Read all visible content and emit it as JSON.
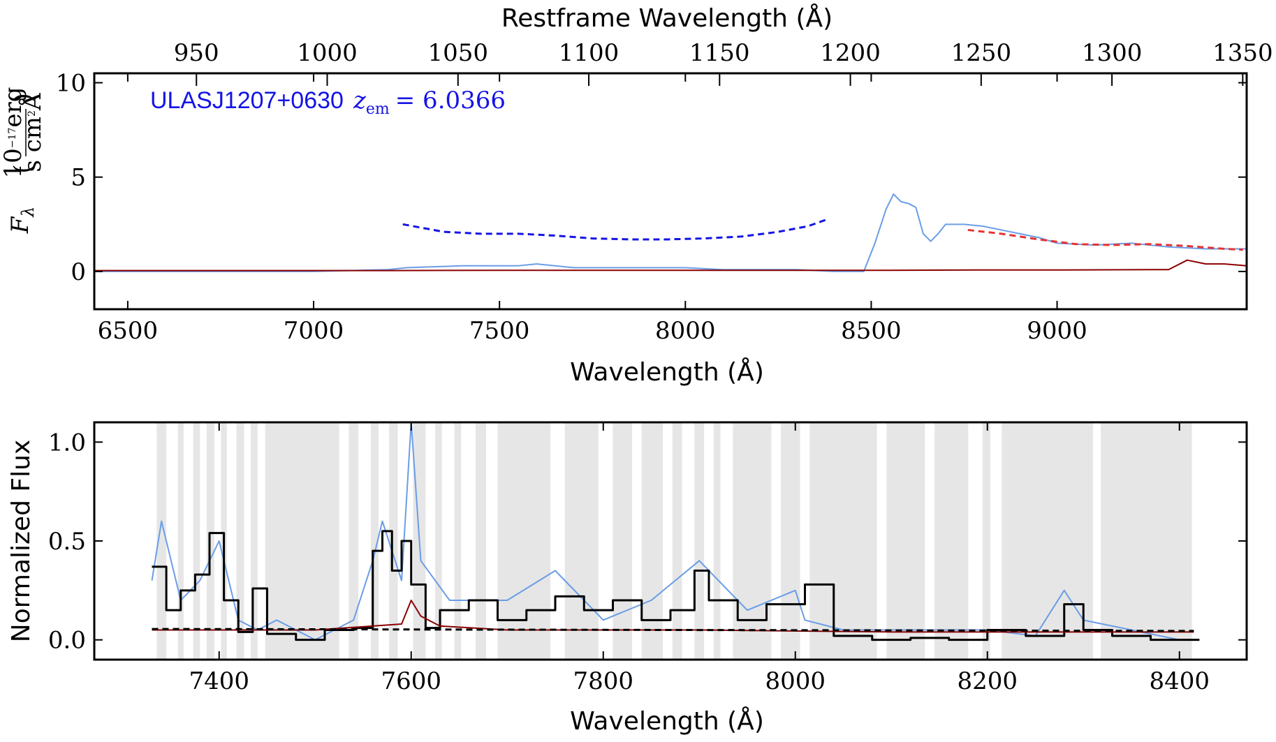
{
  "chart_data": [
    {
      "type": "line",
      "panel": "top",
      "xlabel": "Wavelength (Å)",
      "x2label": "Restframe Wavelength (Å)",
      "ylabel_symbol": "F",
      "ylabel_subscript": "λ",
      "ylabel_unit_num": "10",
      "ylabel_unit_num_exp": "−17",
      "ylabel_unit_num_tail": "erg",
      "ylabel_unit_den": "s cm",
      "ylabel_unit_den_exp": "2",
      "ylabel_unit_den_tail": "Å",
      "annotation": {
        "object": "ULASJ1207+0630",
        "z_symbol": "z",
        "z_sub": "em",
        "z_value": "= 6.0366",
        "color": "#1414e6"
      },
      "xlim": [
        6410,
        9510
      ],
      "ylim": [
        -2,
        10.5
      ],
      "x_ticks": [
        6500,
        7000,
        7500,
        8000,
        8500,
        9000
      ],
      "y_ticks": [
        0,
        5,
        10
      ],
      "x2_ticks": [
        950,
        1000,
        1050,
        1100,
        1150,
        1200,
        1250,
        1300,
        1350
      ],
      "x2_relation": "x2 = x / (1 + 6.0366)",
      "series": [
        {
          "role": "flux",
          "color": "#6a9de6",
          "x": [
            6410,
            6600,
            6800,
            7000,
            7200,
            7250,
            7400,
            7550,
            7600,
            7700,
            7800,
            7900,
            8000,
            8100,
            8200,
            8300,
            8400,
            8480,
            8510,
            8540,
            8560,
            8580,
            8600,
            8620,
            8640,
            8660,
            8680,
            8700,
            8750,
            8800,
            8850,
            8900,
            8950,
            9000,
            9100,
            9200,
            9300,
            9400,
            9450,
            9510
          ],
          "y": [
            0,
            0,
            0,
            0,
            0.1,
            0.2,
            0.3,
            0.3,
            0.4,
            0.2,
            0.2,
            0.2,
            0.2,
            0.1,
            0.1,
            0.1,
            0,
            0,
            1.5,
            3.3,
            4.1,
            3.7,
            3.6,
            3.4,
            2.0,
            1.6,
            2.0,
            2.5,
            2.5,
            2.4,
            2.2,
            2.0,
            1.8,
            1.5,
            1.4,
            1.5,
            1.3,
            1.2,
            1.2,
            1.2
          ]
        },
        {
          "role": "noise",
          "color": "#8b0000",
          "x": [
            6410,
            7000,
            7200,
            7500,
            8000,
            8500,
            8800,
            9000,
            9300,
            9350,
            9400,
            9450,
            9510
          ],
          "y": [
            0.05,
            0.05,
            0.05,
            0.06,
            0.06,
            0.06,
            0.08,
            0.08,
            0.1,
            0.6,
            0.4,
            0.4,
            0.3
          ]
        },
        {
          "role": "continuum-fit",
          "color": "#e63232",
          "style": "dashed",
          "x": [
            8760,
            8850,
            8950,
            9050,
            9150,
            9250,
            9350,
            9450,
            9500
          ],
          "y": [
            2.2,
            2.0,
            1.7,
            1.45,
            1.4,
            1.45,
            1.35,
            1.2,
            1.15
          ]
        },
        {
          "role": "continuum-model",
          "color": "#1414e6",
          "style": "dashed",
          "x": [
            7240,
            7350,
            7450,
            7550,
            7650,
            7750,
            7850,
            7950,
            8050,
            8150,
            8250,
            8330,
            8380
          ],
          "y": [
            2.5,
            2.1,
            2.0,
            2.0,
            1.9,
            1.75,
            1.7,
            1.7,
            1.75,
            1.85,
            2.1,
            2.4,
            2.75
          ]
        }
      ]
    },
    {
      "type": "line",
      "panel": "bottom",
      "xlabel": "Wavelength (Å)",
      "ylabel": "Normalized Flux",
      "xlim": [
        7270,
        8470
      ],
      "ylim": [
        -0.1,
        1.1
      ],
      "x_ticks": [
        7400,
        7600,
        7800,
        8000,
        8200,
        8400
      ],
      "y_ticks": [
        0.0,
        0.5,
        1.0
      ],
      "y_tick_labels": [
        "0.0",
        "0.5",
        "1.0"
      ],
      "shaded_regions": [
        [
          7335,
          7345
        ],
        [
          7357,
          7363
        ],
        [
          7373,
          7380
        ],
        [
          7387,
          7395
        ],
        [
          7402,
          7408
        ],
        [
          7418,
          7426
        ],
        [
          7433,
          7440
        ],
        [
          7448,
          7525
        ],
        [
          7535,
          7545
        ],
        [
          7558,
          7566
        ],
        [
          7577,
          7586
        ],
        [
          7602,
          7615
        ],
        [
          7625,
          7632
        ],
        [
          7645,
          7652
        ],
        [
          7667,
          7678
        ],
        [
          7690,
          7745
        ],
        [
          7760,
          7795
        ],
        [
          7810,
          7830
        ],
        [
          7840,
          7862
        ],
        [
          7872,
          7882
        ],
        [
          7895,
          7905
        ],
        [
          7915,
          7922
        ],
        [
          7935,
          7975
        ],
        [
          7985,
          8005
        ],
        [
          8015,
          8085
        ],
        [
          8095,
          8135
        ],
        [
          8145,
          8180
        ],
        [
          8195,
          8203
        ],
        [
          8215,
          8310
        ],
        [
          8318,
          8413
        ]
      ],
      "series": [
        {
          "role": "normalized-flux",
          "color": "#6a9de6",
          "x": [
            7330,
            7340,
            7360,
            7380,
            7400,
            7420,
            7440,
            7460,
            7500,
            7540,
            7560,
            7570,
            7580,
            7590,
            7600,
            7610,
            7640,
            7700,
            7750,
            7800,
            7850,
            7900,
            7950,
            8000,
            8010,
            8050,
            8100,
            8150,
            8200,
            8250,
            8280,
            8300,
            8350,
            8400,
            8415
          ],
          "y": [
            0.3,
            0.6,
            0.2,
            0.3,
            0.5,
            0.1,
            0.05,
            0.1,
            0.0,
            0.1,
            0.4,
            0.6,
            0.45,
            0.3,
            1.1,
            0.4,
            0.2,
            0.2,
            0.35,
            0.1,
            0.2,
            0.4,
            0.15,
            0.25,
            0.1,
            0.05,
            0.05,
            0.05,
            0.05,
            0.02,
            0.25,
            0.1,
            0.05,
            0.0,
            0.0
          ]
        },
        {
          "role": "binned-flux",
          "color": "#000000",
          "x": [
            7330,
            7345,
            7360,
            7375,
            7390,
            7405,
            7420,
            7435,
            7450,
            7480,
            7510,
            7540,
            7560,
            7570,
            7580,
            7590,
            7600,
            7615,
            7630,
            7660,
            7690,
            7720,
            7750,
            7780,
            7810,
            7840,
            7870,
            7895,
            7910,
            7940,
            7970,
            8010,
            8040,
            8080,
            8120,
            8160,
            8200,
            8240,
            8280,
            8300,
            8330,
            8370,
            8415
          ],
          "y": [
            0.37,
            0.15,
            0.25,
            0.33,
            0.54,
            0.2,
            0.04,
            0.26,
            0.03,
            0.0,
            0.05,
            0.06,
            0.45,
            0.55,
            0.35,
            0.5,
            0.28,
            0.06,
            0.15,
            0.2,
            0.1,
            0.15,
            0.22,
            0.15,
            0.2,
            0.1,
            0.15,
            0.35,
            0.2,
            0.1,
            0.18,
            0.28,
            0.02,
            0.0,
            0.01,
            0.0,
            0.05,
            0.02,
            0.18,
            0.05,
            0.02,
            0.0,
            0.0
          ]
        },
        {
          "role": "normalized-noise",
          "color": "#8b0000",
          "x": [
            7330,
            7500,
            7590,
            7600,
            7610,
            7630,
            7700,
            7900,
            8100,
            8300,
            8415
          ],
          "y": [
            0.05,
            0.05,
            0.08,
            0.2,
            0.12,
            0.07,
            0.05,
            0.05,
            0.04,
            0.04,
            0.04
          ]
        },
        {
          "role": "mean-level",
          "color": "#000000",
          "style": "dashed",
          "x": [
            7330,
            8415
          ],
          "y": [
            0.055,
            0.045
          ]
        }
      ]
    }
  ]
}
